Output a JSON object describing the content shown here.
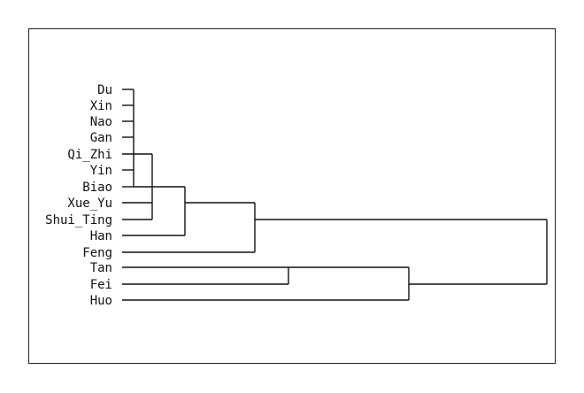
{
  "dendrogram": {
    "leaves": [
      "Du",
      "Xin",
      "Nao",
      "Gan",
      "Qi_Zhi",
      "Yin",
      "Biao",
      "Xue_Yu",
      "Shui_Ting",
      "Han",
      "Feng",
      "Tan",
      "Fei",
      "Huo"
    ],
    "colors": {
      "line": "#111111",
      "text": "#111111",
      "frame": "#222222"
    }
  }
}
